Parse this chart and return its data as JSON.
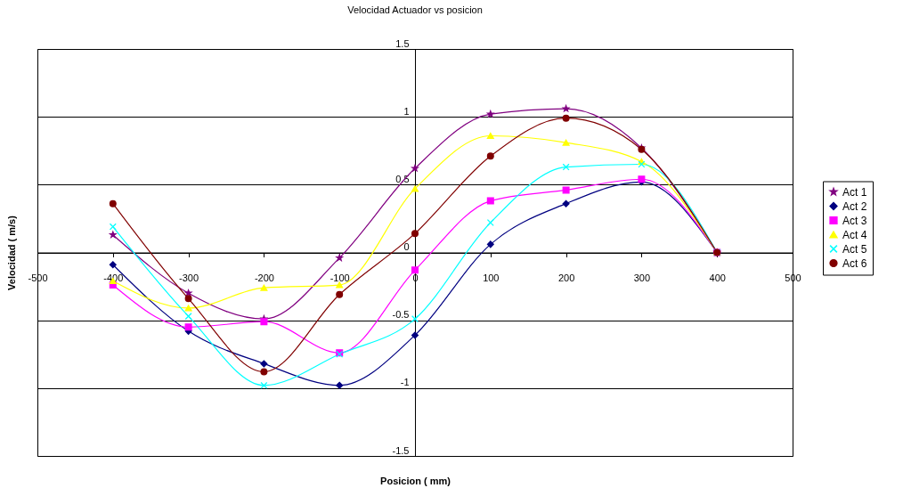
{
  "chart_data": {
    "type": "line",
    "title": "Velocidad Actuador vs posicion",
    "xlabel": "Posicion ( mm)",
    "ylabel": "Velocidad ( m/s)",
    "x": [
      -400,
      -300,
      -200,
      -100,
      0,
      100,
      200,
      300,
      400
    ],
    "xlim": [
      -500,
      500
    ],
    "xticks": [
      -500,
      -400,
      -300,
      -200,
      -100,
      0,
      100,
      200,
      300,
      400,
      500
    ],
    "ylim": [
      -1.5,
      1.5
    ],
    "yticks": [
      -1.5,
      -1,
      -0.5,
      0,
      0.5,
      1,
      1.5
    ],
    "grid": "y",
    "legend": "right",
    "series": [
      {
        "name": "Act 1",
        "color": "#800080",
        "marker": "star",
        "values": [
          0.13,
          -0.3,
          -0.49,
          -0.04,
          0.62,
          1.02,
          1.06,
          0.77,
          0
        ]
      },
      {
        "name": "Act 2",
        "color": "#000080",
        "marker": "diamond",
        "values": [
          -0.09,
          -0.58,
          -0.82,
          -0.98,
          -0.61,
          0.06,
          0.36,
          0.52,
          0
        ]
      },
      {
        "name": "Act 3",
        "color": "#ff00ff",
        "marker": "square",
        "values": [
          -0.24,
          -0.55,
          -0.51,
          -0.74,
          -0.13,
          0.38,
          0.46,
          0.54,
          0
        ]
      },
      {
        "name": "Act 4",
        "color": "#ffff00",
        "marker": "triangle",
        "values": [
          -0.21,
          -0.41,
          -0.26,
          -0.24,
          0.47,
          0.86,
          0.81,
          0.67,
          0
        ]
      },
      {
        "name": "Act 5",
        "color": "#00ffff",
        "marker": "cross",
        "values": [
          0.19,
          -0.47,
          -0.98,
          -0.75,
          -0.49,
          0.22,
          0.63,
          0.65,
          0
        ]
      },
      {
        "name": "Act 6",
        "color": "#800000",
        "marker": "circle",
        "values": [
          0.36,
          -0.34,
          -0.88,
          -0.31,
          0.14,
          0.71,
          0.99,
          0.76,
          0
        ]
      }
    ]
  }
}
